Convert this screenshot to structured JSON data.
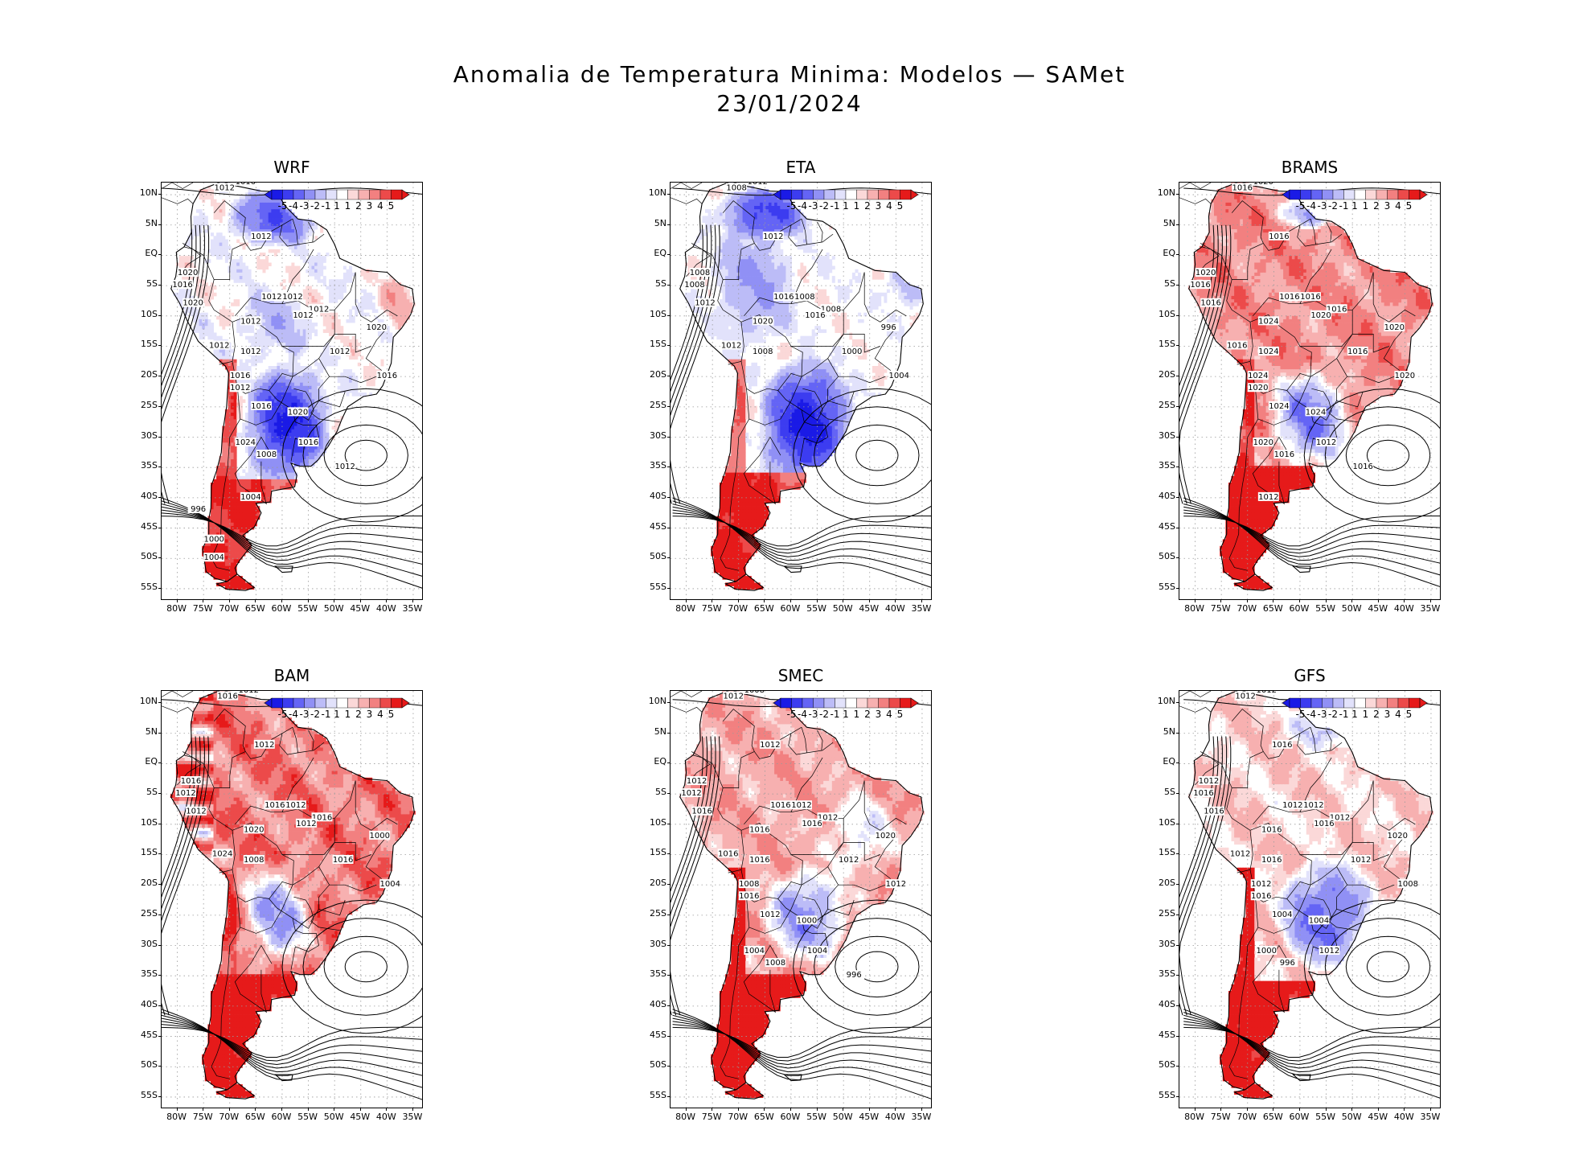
{
  "title_line1": "Anomalia de Temperatura Minima: Modelos — SAMet",
  "title_line2": "23/01/2024",
  "lat_labels": [
    "10N",
    "5N",
    "EQ",
    "5S",
    "10S",
    "15S",
    "20S",
    "25S",
    "30S",
    "35S",
    "40S",
    "45S",
    "50S",
    "55S"
  ],
  "lon_labels": [
    "80W",
    "75W",
    "70W",
    "65W",
    "60W",
    "55W",
    "50W",
    "45W",
    "40W",
    "35W"
  ],
  "colorbar": {
    "labels": [
      "-5",
      "-4",
      "-3",
      "-2",
      "-1",
      "1",
      "1",
      "2",
      "3",
      "4",
      "5"
    ],
    "colors": [
      "#1a1ae6",
      "#3c3cf0",
      "#6464f5",
      "#9090f5",
      "#bcbcf7",
      "#e2e2fb",
      "#ffffff",
      "#fbd8d8",
      "#f7b0b0",
      "#f28080",
      "#ec4a4a",
      "#e61a1a"
    ]
  },
  "panels": [
    {
      "name": "WRF",
      "scheme": "wrf",
      "isobars": [
        "1012",
        "1016",
        "1012",
        "1020",
        "1016",
        "1020",
        "1012",
        "1012",
        "1012",
        "1012",
        "1012",
        "1012",
        "1012",
        "1012",
        "1020",
        "1016",
        "1016",
        "1012",
        "1016",
        "1020",
        "1024",
        "1008",
        "1016",
        "1012",
        "1004",
        "996",
        "1000",
        "1004"
      ]
    },
    {
      "name": "ETA",
      "scheme": "eta",
      "isobars": [
        "1008",
        "1012",
        "1012",
        "1008",
        "1008",
        "1012",
        "1016",
        "1008",
        "1008",
        "1020",
        "1016",
        "1012",
        "1008",
        "1000",
        "996",
        "1004"
      ]
    },
    {
      "name": "BRAMS",
      "scheme": "brams",
      "isobars": [
        "1016",
        "1020",
        "1016",
        "1020",
        "1016",
        "1016",
        "1016",
        "1016",
        "1016",
        "1024",
        "1020",
        "1016",
        "1024",
        "1016",
        "1020",
        "1020",
        "1024",
        "1020",
        "1024",
        "1024",
        "1020",
        "1016",
        "1012",
        "1016",
        "1012"
      ]
    },
    {
      "name": "BAM",
      "scheme": "bam",
      "isobars": [
        "1016",
        "1012",
        "1012",
        "1016",
        "1012",
        "1012",
        "1016",
        "1012",
        "1016",
        "1020",
        "1012",
        "1024",
        "1008",
        "1016",
        "1000",
        "1004"
      ]
    },
    {
      "name": "SMEC",
      "scheme": "smec",
      "isobars": [
        "1012",
        "1008",
        "1012",
        "1012",
        "1012",
        "1016",
        "1016",
        "1012",
        "1012",
        "1016",
        "1016",
        "1016",
        "1016",
        "1012",
        "1020",
        "1012",
        "1008",
        "1016",
        "1012",
        "1000",
        "1004",
        "1008",
        "1004",
        "996"
      ]
    },
    {
      "name": "GFS",
      "scheme": "gfs",
      "isobars": [
        "1012",
        "1012",
        "1016",
        "1012",
        "1016",
        "1016",
        "1012",
        "1012",
        "1012",
        "1016",
        "1016",
        "1012",
        "1016",
        "1012",
        "1020",
        "1008",
        "1012",
        "1016",
        "1004",
        "1004",
        "1000",
        "996",
        "1012"
      ]
    }
  ]
}
